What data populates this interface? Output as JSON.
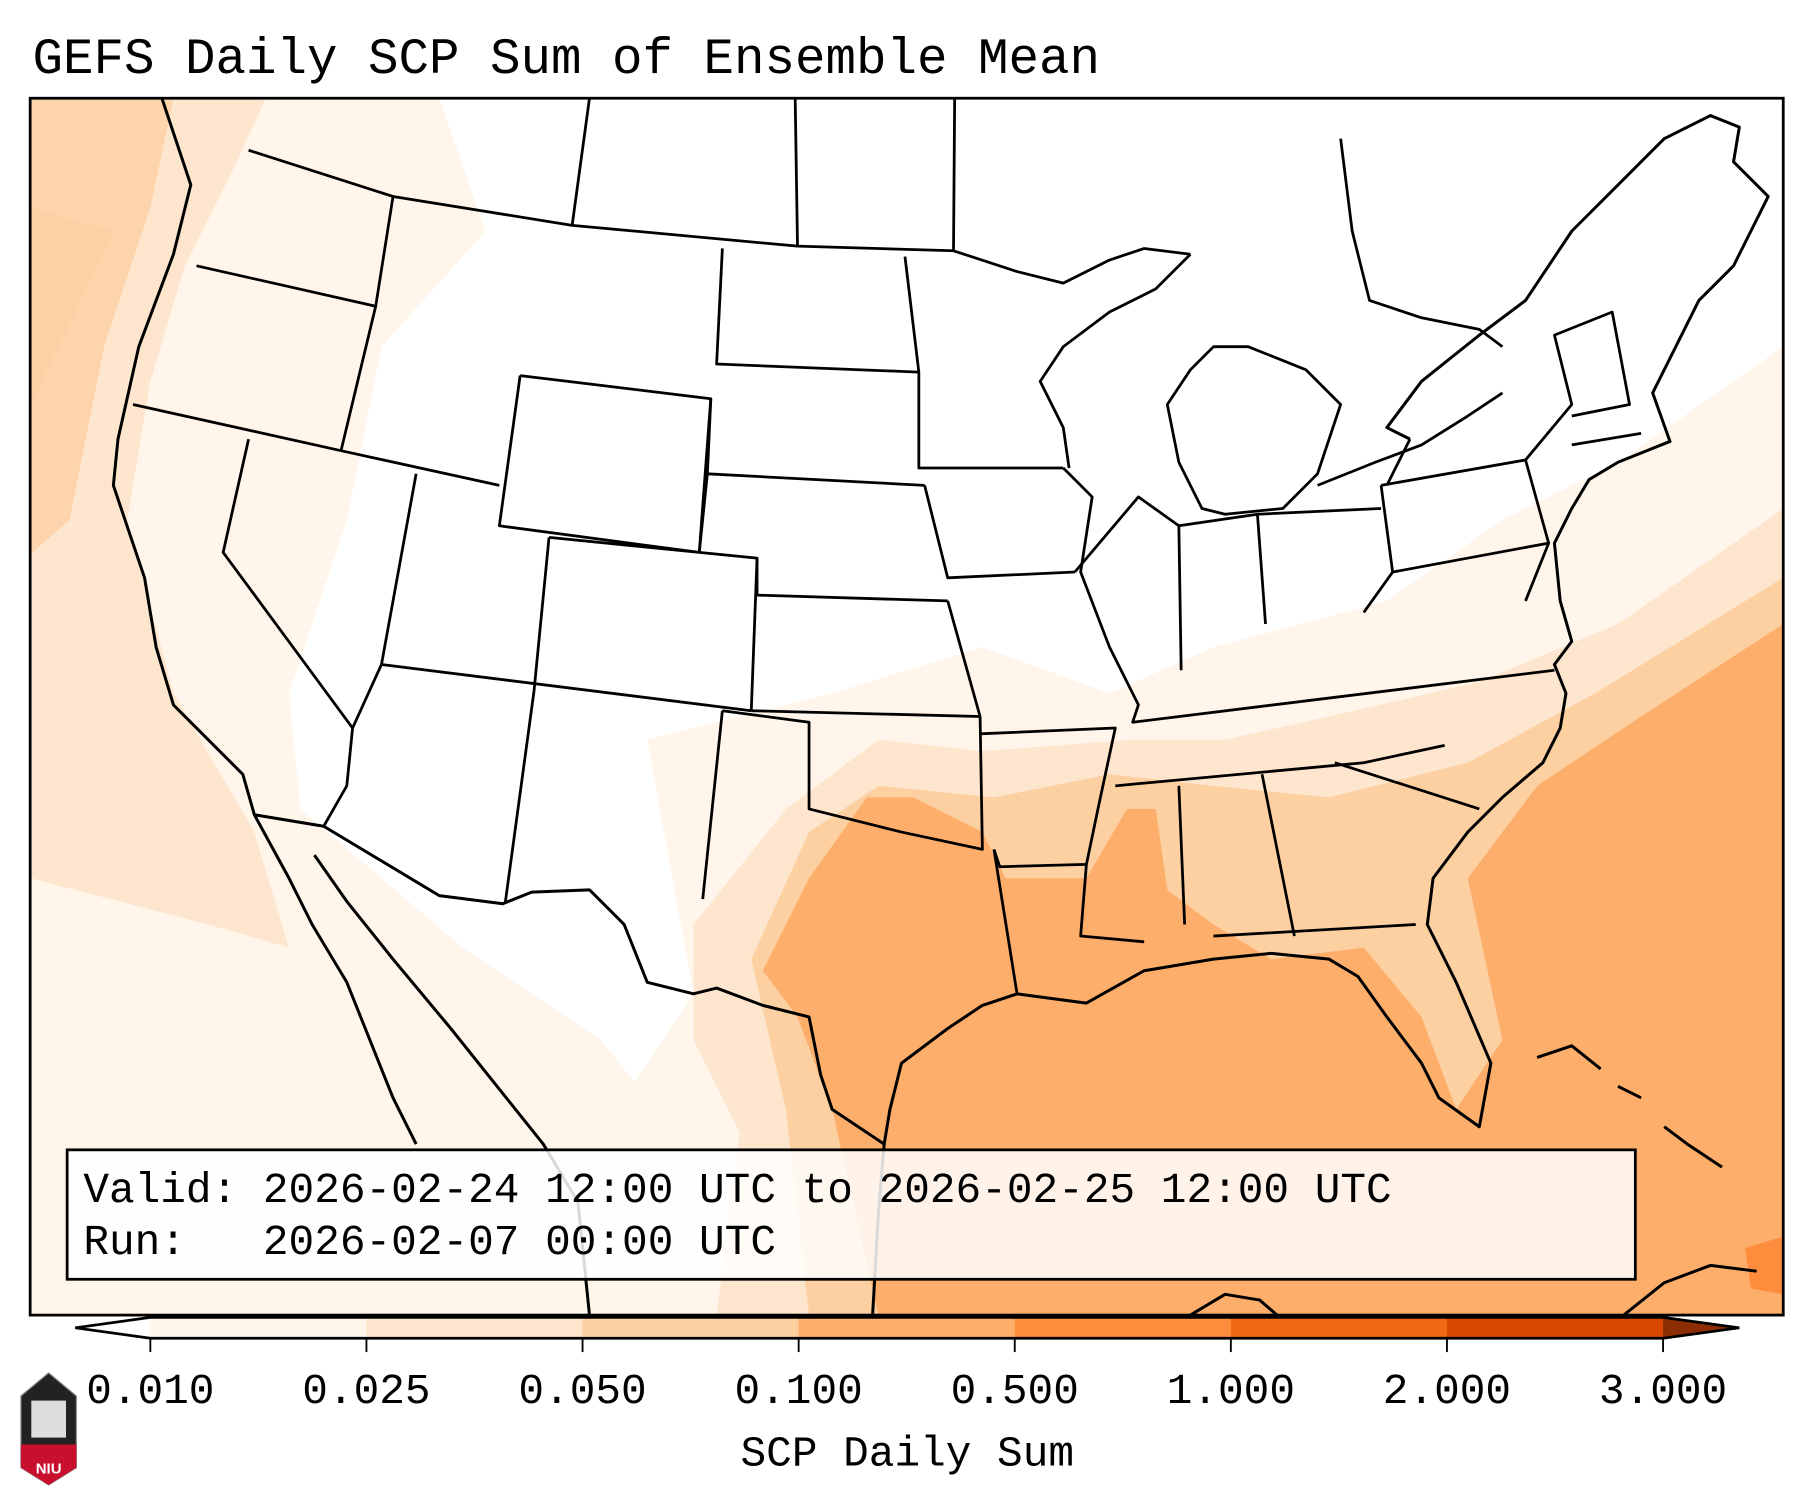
{
  "title": "GEFS Daily SCP Sum of Ensemble Mean",
  "info_box": {
    "valid_line": "Valid: 2026-02-24 12:00 UTC to 2026-02-25 12:00 UTC",
    "run_line": "Run:   2026-02-07 00:00 UTC"
  },
  "colorbar": {
    "label": "SCP Daily Sum",
    "ticks": [
      "0.010",
      "0.025",
      "0.050",
      "0.100",
      "0.500",
      "1.000",
      "2.000",
      "3.000"
    ],
    "colors": [
      "#fff5eb",
      "#fee6ce",
      "#fdd0a2",
      "#fdae6b",
      "#fd8d3c",
      "#f16913",
      "#d94801"
    ],
    "under_color": "#ffffff",
    "over_color": "#8c2d04"
  },
  "logo": {
    "text": "NIU"
  }
}
